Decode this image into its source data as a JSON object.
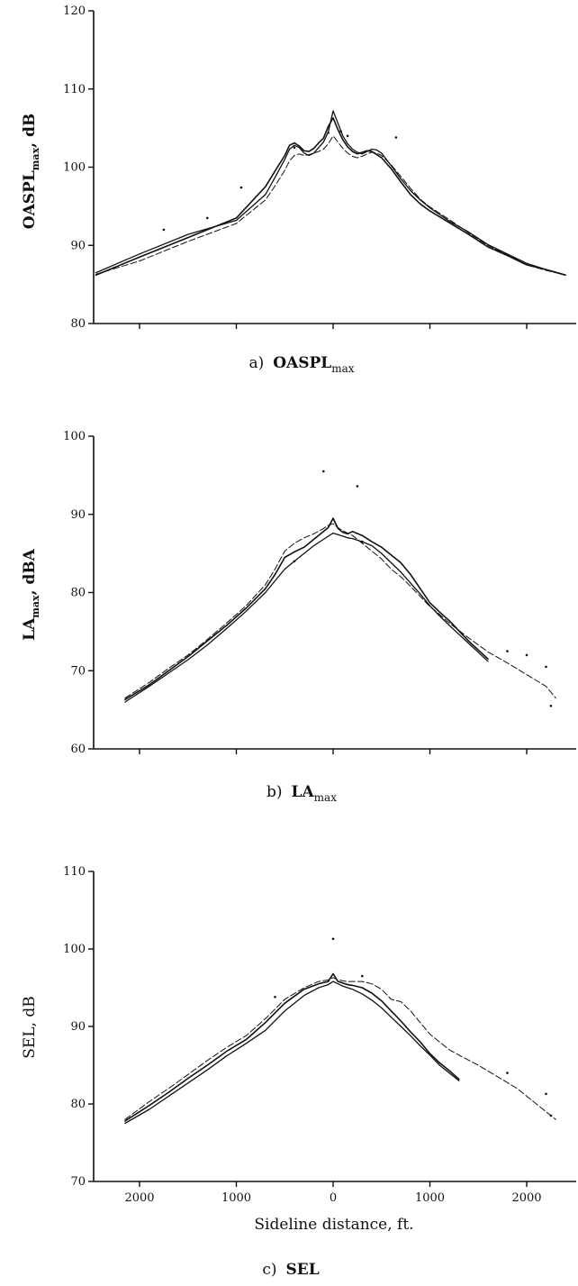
{
  "chart_data": [
    {
      "type": "line",
      "panel": "a",
      "caption_prefix": "a)",
      "caption_main": "OASPL",
      "caption_sub": "max",
      "ylabel_main": "OASPL",
      "ylabel_sub": "max",
      "ylabel_unit": ", dB",
      "ylim": [
        80,
        120
      ],
      "yticks": [
        80,
        90,
        100,
        110,
        120
      ],
      "xlim": [
        -2450,
        2450
      ],
      "xticks": [
        -2000,
        -1000,
        0,
        1000,
        2000
      ],
      "xtick_labels": [],
      "grid": false,
      "series": [
        {
          "x": [
            -2450,
            -2000,
            -1500,
            -1000,
            -700,
            -600,
            -500,
            -450,
            -400,
            -350,
            -300,
            -250,
            -200,
            -150,
            -100,
            -50,
            0,
            50,
            100,
            150,
            200,
            250,
            300,
            350,
            400,
            450,
            500,
            600,
            700,
            800,
            900,
            1000,
            1200,
            1400,
            1600,
            1800,
            2000,
            2200,
            2400
          ],
          "y": [
            86.2,
            88.5,
            91,
            93.5,
            97.5,
            99.5,
            101.5,
            102.8,
            103.1,
            102.7,
            102.1,
            102.0,
            102.4,
            103.1,
            103.7,
            105.2,
            106.3,
            104.8,
            103.5,
            102.6,
            102.0,
            101.7,
            101.9,
            102.1,
            102.0,
            101.6,
            101.2,
            99.8,
            98.1,
            96.5,
            95.3,
            94.4,
            92.9,
            91.4,
            89.8,
            88.7,
            87.5,
            86.9,
            86.2
          ]
        },
        {
          "x": [
            -2450,
            -2000,
            -1500,
            -1000,
            -700,
            -600,
            -500,
            -450,
            -400,
            -350,
            -300,
            -250,
            -200,
            -150,
            -100,
            -50,
            0,
            50,
            100,
            150,
            200,
            250,
            300,
            350,
            400,
            450,
            500,
            600,
            700,
            800,
            900,
            1000,
            1200,
            1400,
            1600,
            1800,
            2000,
            2200,
            2400
          ],
          "y": [
            86.5,
            88.9,
            91.4,
            93.2,
            96.5,
            98.7,
            101.0,
            102.3,
            102.8,
            102.5,
            101.8,
            101.5,
            101.8,
            102.5,
            103.2,
            104.5,
            107.2,
            105.6,
            104.0,
            103.0,
            102.3,
            101.9,
            101.7,
            102.0,
            102.3,
            102.2,
            101.8,
            100.2,
            98.5,
            97.0,
            95.8,
            94.8,
            93.1,
            91.7,
            90.1,
            88.9,
            87.7,
            86.9,
            86.2
          ]
        },
        {
          "x": [
            -2450,
            -2000,
            -1500,
            -1000,
            -700,
            -600,
            -500,
            -450,
            -400,
            -350,
            -300,
            -250,
            -200,
            -150,
            -100,
            -50,
            0,
            50,
            100,
            150,
            200,
            250,
            300,
            350,
            400,
            450,
            500,
            600,
            700,
            800,
            900,
            1000,
            1200,
            1400,
            1600,
            1800,
            2000,
            2200,
            2400
          ],
          "y": [
            86.3,
            88.0,
            90.5,
            92.8,
            95.8,
            97.6,
            99.6,
            100.8,
            101.5,
            101.7,
            101.5,
            101.6,
            101.8,
            102.0,
            102.3,
            103.0,
            104.0,
            103.2,
            102.4,
            101.8,
            101.4,
            101.2,
            101.4,
            101.7,
            101.9,
            101.8,
            101.5,
            100.3,
            98.8,
            97.3,
            95.9,
            94.9,
            93.3,
            91.6,
            90.0,
            88.8,
            87.5,
            86.8,
            86.2
          ]
        }
      ],
      "points": [
        [
          -1750,
          92
        ],
        [
          -1300,
          93.5
        ],
        [
          -950,
          97.4
        ],
        [
          -50,
          104.4
        ],
        [
          80,
          104.6
        ],
        [
          150,
          104.0
        ],
        [
          650,
          103.8
        ],
        [
          -400,
          102.5
        ]
      ]
    },
    {
      "type": "line",
      "panel": "b",
      "caption_prefix": "b)",
      "caption_main": "LA",
      "caption_sub": "max",
      "ylabel_main": "LA",
      "ylabel_sub": "max",
      "ylabel_unit": ", dBA",
      "ylim": [
        60,
        100
      ],
      "yticks": [
        60,
        70,
        80,
        90,
        100
      ],
      "xlim": [
        -2450,
        2450
      ],
      "xticks": [
        -2000,
        -1000,
        0,
        1000,
        2000
      ],
      "xtick_labels": [],
      "grid": false,
      "series": [
        {
          "x": [
            -2150,
            -1900,
            -1700,
            -1500,
            -1300,
            -1100,
            -900,
            -700,
            -600,
            -500,
            -400,
            -300,
            -200,
            -100,
            -50,
            0,
            50,
            100,
            150,
            200,
            300,
            400,
            500,
            600,
            700,
            800,
            900,
            1000,
            1100,
            1200,
            1400,
            1600
          ],
          "y": [
            66.3,
            68.2,
            70.0,
            71.8,
            73.8,
            75.8,
            78.0,
            80.5,
            82.3,
            84.5,
            85.2,
            85.8,
            86.8,
            87.8,
            88.3,
            89.5,
            88.2,
            87.7,
            87.5,
            87.8,
            87.3,
            86.5,
            85.8,
            84.8,
            83.8,
            82.3,
            80.5,
            78.7,
            77.5,
            76.4,
            73.8,
            71.5
          ]
        },
        {
          "x": [
            -2150,
            -1900,
            -1700,
            -1500,
            -1300,
            -1100,
            -900,
            -700,
            -600,
            -500,
            -400,
            -300,
            -200,
            -100,
            -50,
            0,
            50,
            100,
            150,
            200,
            300,
            400,
            500,
            600,
            700,
            800,
            900,
            1000,
            1100,
            1200,
            1400,
            1600
          ],
          "y": [
            66.0,
            68.0,
            69.7,
            71.4,
            73.3,
            75.4,
            77.6,
            80.0,
            81.5,
            83.0,
            84.0,
            85.0,
            86.0,
            86.8,
            87.2,
            87.6,
            87.4,
            87.2,
            87.0,
            86.9,
            86.5,
            86.0,
            85.0,
            83.8,
            82.6,
            81.2,
            79.8,
            78.3,
            77.0,
            75.8,
            73.5,
            71.2
          ]
        },
        {
          "x": [
            -2150,
            -1900,
            -1700,
            -1500,
            -1300,
            -1100,
            -900,
            -700,
            -600,
            -500,
            -400,
            -300,
            -200,
            -100,
            -50,
            0,
            50,
            100,
            150,
            200,
            300,
            400,
            500,
            600,
            700,
            800,
            900,
            1000,
            1100,
            1200,
            1400,
            1600,
            1800,
            2000,
            2200,
            2300
          ],
          "y": [
            66.5,
            68.5,
            70.3,
            72.0,
            74.0,
            76.1,
            78.3,
            81.0,
            83.0,
            85.3,
            86.3,
            87.0,
            87.5,
            88.2,
            88.6,
            88.8,
            88.3,
            87.9,
            87.6,
            87.3,
            86.3,
            85.3,
            84.3,
            83.0,
            82.0,
            80.8,
            79.5,
            78.2,
            77.2,
            76.1,
            74.2,
            72.4,
            71.0,
            69.5,
            68.0,
            66.5
          ]
        }
      ],
      "points": [
        [
          -100,
          95.5
        ],
        [
          250,
          93.6
        ],
        [
          1800,
          72.5
        ],
        [
          2000,
          72.0
        ],
        [
          2200,
          70.5
        ],
        [
          2250,
          65.5
        ],
        [
          -400,
          84.0
        ],
        [
          300,
          86.5
        ]
      ]
    },
    {
      "type": "line",
      "panel": "c",
      "caption_prefix": "c)",
      "caption_main": "SEL",
      "caption_sub": "",
      "ylabel_main": "SEL",
      "ylabel_sub": "",
      "ylabel_unit": ", dB",
      "ylim": [
        70,
        110
      ],
      "yticks": [
        70,
        80,
        90,
        100,
        110
      ],
      "xlim": [
        -2450,
        2450
      ],
      "xticks": [
        -2000,
        -1000,
        0,
        1000,
        2000
      ],
      "xtick_labels": [
        "2000",
        "1000",
        "0",
        "1000",
        "2000"
      ],
      "xlabel": "Sideline distance, ft.",
      "grid": false,
      "series": [
        {
          "x": [
            -2150,
            -1900,
            -1700,
            -1500,
            -1300,
            -1100,
            -900,
            -700,
            -500,
            -300,
            -150,
            -50,
            0,
            50,
            100,
            150,
            200,
            300,
            400,
            500,
            600,
            700,
            800,
            900,
            1000,
            1100,
            1200,
            1300
          ],
          "y": [
            77.8,
            79.8,
            81.5,
            83.3,
            85.0,
            86.8,
            88.3,
            90.5,
            93.0,
            94.8,
            95.5,
            95.8,
            96.8,
            95.8,
            95.6,
            95.4,
            95.3,
            95.0,
            94.3,
            93.3,
            92.0,
            90.7,
            89.3,
            88.0,
            86.5,
            85.3,
            84.3,
            83.2
          ]
        },
        {
          "x": [
            -2150,
            -1900,
            -1700,
            -1500,
            -1300,
            -1100,
            -900,
            -700,
            -500,
            -300,
            -150,
            -50,
            0,
            50,
            100,
            150,
            200,
            300,
            400,
            500,
            600,
            700,
            800,
            900,
            1000,
            1100,
            1200,
            1300
          ],
          "y": [
            77.5,
            79.3,
            81.0,
            82.7,
            84.4,
            86.2,
            87.8,
            89.5,
            92.0,
            94.0,
            95.0,
            95.4,
            95.8,
            95.5,
            95.2,
            95.0,
            94.8,
            94.2,
            93.4,
            92.4,
            91.2,
            90.0,
            88.8,
            87.5,
            86.3,
            85.0,
            84.0,
            83.0
          ]
        },
        {
          "x": [
            -2150,
            -1900,
            -1700,
            -1500,
            -1300,
            -1100,
            -900,
            -700,
            -500,
            -300,
            -150,
            -50,
            0,
            50,
            100,
            150,
            200,
            300,
            400,
            500,
            600,
            700,
            800,
            900,
            1000,
            1100,
            1200,
            1300,
            1500,
            1700,
            1900,
            2100,
            2200,
            2300
          ],
          "y": [
            78.0,
            80.3,
            82.0,
            83.8,
            85.6,
            87.3,
            88.8,
            91.0,
            93.5,
            95.0,
            95.8,
            96.0,
            96.3,
            96.0,
            95.9,
            95.8,
            95.8,
            95.8,
            95.5,
            94.8,
            93.5,
            93.2,
            92.0,
            90.5,
            89.0,
            88.0,
            87.0,
            86.3,
            85.0,
            83.5,
            82.0,
            80.0,
            79.0,
            78.0
          ]
        }
      ],
      "points": [
        [
          0,
          101.3
        ],
        [
          -600,
          93.8
        ],
        [
          2200,
          81.3
        ],
        [
          2250,
          78.5
        ],
        [
          1800,
          84.0
        ],
        [
          300,
          96.5
        ]
      ]
    }
  ]
}
